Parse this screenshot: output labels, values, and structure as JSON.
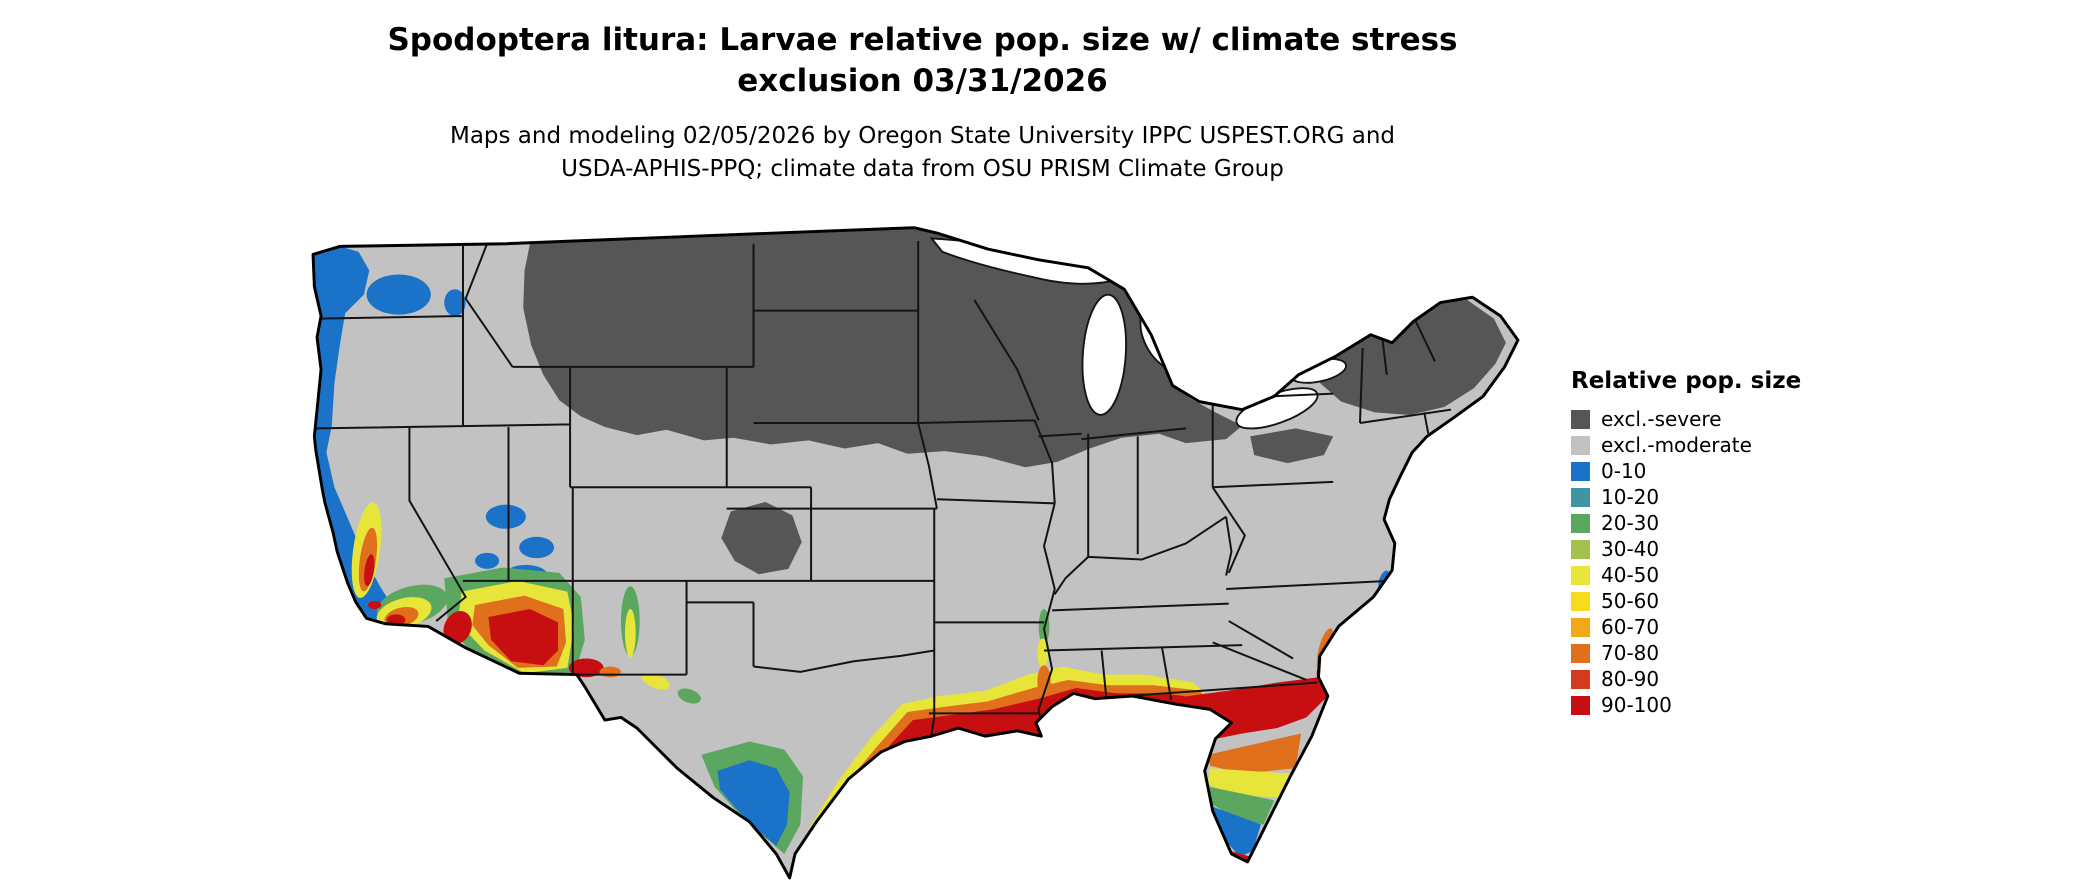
{
  "figure": {
    "title_line1": "Spodoptera litura: Larvae relative pop. size w/ climate stress",
    "title_line2": "exclusion 03/31/2026",
    "subtitle_line1": "Maps and modeling 02/05/2026 by Oregon State University IPPC USPEST.ORG and",
    "subtitle_line2": "USDA-APHIS-PPQ; climate data from OSU PRISM Climate Group"
  },
  "legend": {
    "title": "Relative pop. size",
    "items": [
      {
        "key": "severe",
        "label": "excl.-severe",
        "color": "#565656"
      },
      {
        "key": "moderate",
        "label": "excl.-moderate",
        "color": "#c2c2c2"
      },
      {
        "key": "p0",
        "label": "0-10",
        "color": "#1a73c8"
      },
      {
        "key": "p10",
        "label": "10-20",
        "color": "#4095a5"
      },
      {
        "key": "p20",
        "label": "20-30",
        "color": "#5ca75f"
      },
      {
        "key": "p30",
        "label": "30-40",
        "color": "#a6c04e"
      },
      {
        "key": "p40",
        "label": "40-50",
        "color": "#e7e43a"
      },
      {
        "key": "p50",
        "label": "50-60",
        "color": "#f5dc1e"
      },
      {
        "key": "p60",
        "label": "60-70",
        "color": "#f2a819"
      },
      {
        "key": "p70",
        "label": "70-80",
        "color": "#e0701c"
      },
      {
        "key": "p80",
        "label": "80-90",
        "color": "#d43a1d"
      },
      {
        "key": "p90",
        "label": "90-100",
        "color": "#c70e10"
      }
    ]
  },
  "map": {
    "region": "Continental United States",
    "ocean_color": "#ffffff",
    "state_border_color": "#141414",
    "outline_color": "#000000",
    "lake_color": "#ffffff"
  }
}
